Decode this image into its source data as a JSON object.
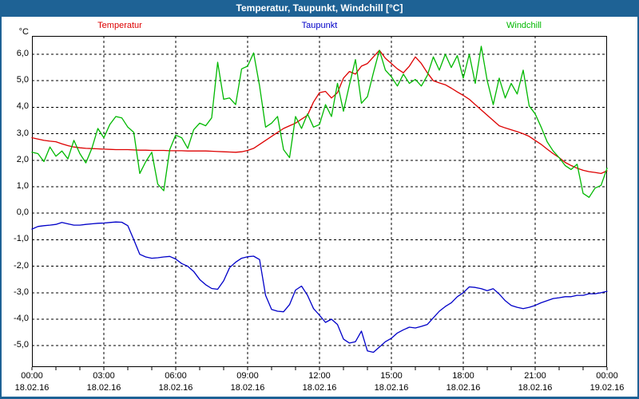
{
  "window": {
    "title": "Temperatur, Taupunkt, Windchill [°C]",
    "titlebar_color": "#1e6295"
  },
  "legend": [
    {
      "label": "Temperatur",
      "color": "#dd0000"
    },
    {
      "label": "Taupunkt",
      "color": "#0000c8"
    },
    {
      "label": "Windchill",
      "color": "#00b800"
    }
  ],
  "chart_data": {
    "type": "line",
    "title": "Temperatur, Taupunkt, Windchill [°C]",
    "grid": "dashed",
    "legend_position": "top",
    "y_axis": {
      "unit": "°C",
      "range_shown": [
        -5.8,
        6.7
      ],
      "ticks": [
        {
          "value": 6,
          "label": "6,0"
        },
        {
          "value": 5,
          "label": "5,0"
        },
        {
          "value": 4,
          "label": "4,0"
        },
        {
          "value": 3,
          "label": "3,0"
        },
        {
          "value": 2,
          "label": "2,0"
        },
        {
          "value": 1,
          "label": "1,0"
        },
        {
          "value": 0,
          "label": "0,0"
        },
        {
          "value": -1,
          "label": "-1,0"
        },
        {
          "value": -2,
          "label": "-2,0"
        },
        {
          "value": -3,
          "label": "-3,0"
        },
        {
          "value": -4,
          "label": "-4,0"
        },
        {
          "value": -5,
          "label": "-5,0"
        }
      ]
    },
    "x_axis": {
      "span_hours": 24,
      "minor_tick_every_hours": 1,
      "major_ticks": [
        {
          "hour": 0,
          "time": "00:00",
          "date": "18.02.16"
        },
        {
          "hour": 3,
          "time": "03:00",
          "date": "18.02.16"
        },
        {
          "hour": 6,
          "time": "06:00",
          "date": "18.02.16"
        },
        {
          "hour": 9,
          "time": "09:00",
          "date": "18.02.16"
        },
        {
          "hour": 12,
          "time": "12:00",
          "date": "18.02.16"
        },
        {
          "hour": 15,
          "time": "15:00",
          "date": "18.02.16"
        },
        {
          "hour": 18,
          "time": "18:00",
          "date": "18.02.16"
        },
        {
          "hour": 21,
          "time": "21:00",
          "date": "18.02.16"
        },
        {
          "hour": 24,
          "time": "00:00",
          "date": "19.02.16"
        }
      ]
    },
    "sample_interval_minutes": 15,
    "series": [
      {
        "name": "Temperatur",
        "color": "#dd0000",
        "values": [
          2.85,
          2.8,
          2.75,
          2.72,
          2.7,
          2.62,
          2.55,
          2.5,
          2.47,
          2.45,
          2.44,
          2.43,
          2.42,
          2.41,
          2.4,
          2.4,
          2.4,
          2.39,
          2.38,
          2.38,
          2.37,
          2.37,
          2.37,
          2.36,
          2.36,
          2.36,
          2.35,
          2.35,
          2.35,
          2.35,
          2.34,
          2.33,
          2.32,
          2.31,
          2.3,
          2.32,
          2.37,
          2.45,
          2.6,
          2.75,
          2.9,
          3.05,
          3.2,
          3.3,
          3.4,
          3.55,
          3.7,
          4.2,
          4.55,
          4.6,
          4.35,
          4.55,
          5.1,
          5.35,
          5.25,
          5.55,
          5.65,
          5.9,
          6.15,
          5.85,
          5.65,
          5.45,
          5.3,
          5.55,
          5.9,
          5.65,
          5.3,
          5.0,
          4.92,
          4.85,
          4.72,
          4.58,
          4.45,
          4.3,
          4.1,
          3.9,
          3.7,
          3.5,
          3.3,
          3.22,
          3.15,
          3.08,
          3.0,
          2.9,
          2.75,
          2.6,
          2.42,
          2.25,
          2.1,
          1.92,
          1.8,
          1.7,
          1.62,
          1.57,
          1.54,
          1.5,
          1.6
        ]
      },
      {
        "name": "Taupunkt",
        "color": "#0000c8",
        "values": [
          -0.6,
          -0.5,
          -0.47,
          -0.45,
          -0.42,
          -0.35,
          -0.4,
          -0.45,
          -0.45,
          -0.42,
          -0.4,
          -0.38,
          -0.37,
          -0.35,
          -0.33,
          -0.34,
          -0.47,
          -1.0,
          -1.55,
          -1.65,
          -1.7,
          -1.68,
          -1.65,
          -1.63,
          -1.73,
          -1.9,
          -2.0,
          -2.2,
          -2.5,
          -2.7,
          -2.84,
          -2.87,
          -2.55,
          -2.05,
          -1.85,
          -1.7,
          -1.64,
          -1.62,
          -1.75,
          -3.1,
          -3.63,
          -3.7,
          -3.72,
          -3.45,
          -2.9,
          -2.75,
          -3.1,
          -3.6,
          -3.85,
          -4.12,
          -4.0,
          -4.2,
          -4.75,
          -4.9,
          -4.85,
          -4.45,
          -5.2,
          -5.25,
          -5.05,
          -4.85,
          -4.72,
          -4.52,
          -4.4,
          -4.3,
          -4.33,
          -4.27,
          -4.2,
          -3.95,
          -3.7,
          -3.52,
          -3.38,
          -3.15,
          -3.0,
          -2.78,
          -2.8,
          -2.85,
          -2.92,
          -2.85,
          -3.05,
          -3.3,
          -3.48,
          -3.55,
          -3.6,
          -3.55,
          -3.48,
          -3.38,
          -3.3,
          -3.22,
          -3.19,
          -3.15,
          -3.15,
          -3.1,
          -3.1,
          -3.04,
          -3.04,
          -3.0,
          -2.95
        ]
      },
      {
        "name": "Windchill",
        "color": "#00b800",
        "values": [
          2.3,
          2.25,
          1.95,
          2.5,
          2.15,
          2.35,
          2.05,
          2.75,
          2.25,
          1.9,
          2.45,
          3.2,
          2.85,
          3.35,
          3.65,
          3.6,
          3.25,
          3.05,
          1.5,
          1.95,
          2.3,
          1.1,
          0.85,
          2.4,
          2.95,
          2.85,
          2.45,
          3.15,
          3.4,
          3.3,
          3.6,
          5.7,
          4.3,
          4.35,
          4.1,
          5.45,
          5.55,
          6.05,
          4.8,
          3.25,
          3.4,
          3.65,
          2.4,
          2.1,
          3.65,
          3.2,
          3.75,
          3.25,
          3.35,
          4.1,
          3.65,
          4.9,
          3.85,
          4.85,
          5.8,
          4.15,
          4.4,
          5.3,
          6.15,
          5.4,
          5.15,
          4.8,
          5.25,
          4.9,
          5.05,
          4.8,
          5.2,
          5.9,
          5.4,
          6.0,
          5.5,
          5.95,
          5.1,
          6.0,
          4.9,
          6.3,
          5.0,
          4.1,
          5.1,
          4.35,
          4.9,
          4.5,
          5.4,
          4.05,
          3.75,
          3.25,
          2.7,
          2.35,
          2.1,
          1.8,
          1.65,
          1.85,
          0.75,
          0.6,
          0.95,
          1.05,
          1.7
        ]
      }
    ]
  }
}
